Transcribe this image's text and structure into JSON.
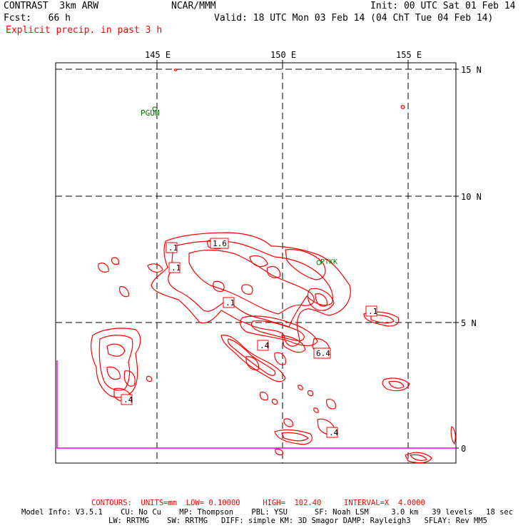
{
  "header": {
    "title_left": "CONTRAST  3km ARW",
    "title_center": "NCAR/MMM",
    "init": "Init: 00 UTC Sat 01 Feb 14",
    "fcst": "Fcst:   66 h",
    "valid": "Valid: 18 UTC Mon 03 Feb 14 (04 ChT Tue 04 Feb 14)",
    "field": "Explicit precip. in past 3 h"
  },
  "map": {
    "lon_labels": [
      "145 E",
      "150 E",
      "155 E"
    ],
    "lat_labels": [
      "15 N",
      "10 N",
      "5 N",
      "0"
    ],
    "stations": [
      "PGUM",
      "PTKK"
    ],
    "contour_labels": [
      ".1",
      "1.6",
      ".1",
      ".1",
      ".1",
      ".4",
      "6.4",
      ".4",
      ".4"
    ],
    "colors": {
      "contour": "#ff0000",
      "station": "#007a00",
      "grid": "#000000",
      "boundary": "#ff00ff"
    }
  },
  "footer": {
    "contours": "CONTOURS:  UNITS=mm  LOW= 0.10000     HIGH=  102.40     INTERVAL=X  4.0000",
    "model_line1": "Model Info: V3.5.1    CU: No Cu    MP: Thompson    PBL: YSU      SF: Noah LSM     3.0 km   39 levels   18 sec",
    "model_line2": "LW: RRTMG    SW: RRTMG   DIFF: simple KM: 3D Smagor DAMP: Rayleigh3   SFLAY: Rev MM5"
  }
}
